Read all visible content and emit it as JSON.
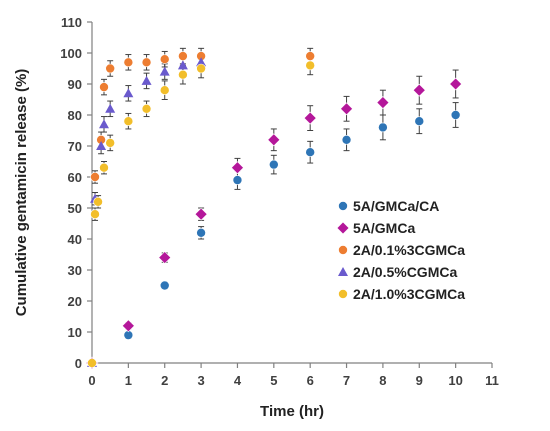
{
  "chart_data": {
    "type": "scatter",
    "xlabel": "Time (hr)",
    "ylabel": "Cumulative gentamicin  release (%)",
    "xlim": [
      0,
      11
    ],
    "ylim": [
      0,
      110
    ],
    "xticks": [
      0,
      1,
      2,
      3,
      4,
      5,
      6,
      7,
      8,
      9,
      10,
      11
    ],
    "yticks": [
      0,
      10,
      20,
      30,
      40,
      50,
      60,
      70,
      80,
      90,
      100,
      110
    ],
    "grid": false,
    "legend_position": "right-middle",
    "series": [
      {
        "name": "5A/GMCa/CA",
        "marker": "circle",
        "color": "#2e75b6",
        "points": [
          {
            "x": 0,
            "y": 0,
            "err": 0
          },
          {
            "x": 1,
            "y": 9,
            "err": 1
          },
          {
            "x": 2,
            "y": 25,
            "err": 1
          },
          {
            "x": 3,
            "y": 42,
            "err": 2
          },
          {
            "x": 4,
            "y": 59,
            "err": 3
          },
          {
            "x": 5,
            "y": 64,
            "err": 3
          },
          {
            "x": 6,
            "y": 68,
            "err": 3.5
          },
          {
            "x": 7,
            "y": 72,
            "err": 3.5
          },
          {
            "x": 8,
            "y": 76,
            "err": 4
          },
          {
            "x": 9,
            "y": 78,
            "err": 4
          },
          {
            "x": 10,
            "y": 80,
            "err": 4
          }
        ]
      },
      {
        "name": "5A/GMCa",
        "marker": "diamond",
        "color": "#b4179a",
        "points": [
          {
            "x": 0,
            "y": 0,
            "err": 0
          },
          {
            "x": 1,
            "y": 12,
            "err": 1
          },
          {
            "x": 2,
            "y": 34,
            "err": 1.5
          },
          {
            "x": 3,
            "y": 48,
            "err": 2
          },
          {
            "x": 4,
            "y": 63,
            "err": 3
          },
          {
            "x": 5,
            "y": 72,
            "err": 3.5
          },
          {
            "x": 6,
            "y": 79,
            "err": 4
          },
          {
            "x": 7,
            "y": 82,
            "err": 4
          },
          {
            "x": 8,
            "y": 84,
            "err": 4
          },
          {
            "x": 9,
            "y": 88,
            "err": 4.5
          },
          {
            "x": 10,
            "y": 90,
            "err": 4.5
          }
        ]
      },
      {
        "name": "2A/0.1%3CGMCa",
        "marker": "circle",
        "color": "#ed7d31",
        "points": [
          {
            "x": 0,
            "y": 0,
            "err": 0
          },
          {
            "x": 0.083,
            "y": 60,
            "err": 2
          },
          {
            "x": 0.25,
            "y": 72,
            "err": 2.5
          },
          {
            "x": 0.33,
            "y": 89,
            "err": 2.5
          },
          {
            "x": 0.5,
            "y": 95,
            "err": 2.5
          },
          {
            "x": 1,
            "y": 97,
            "err": 2.5
          },
          {
            "x": 1.5,
            "y": 97,
            "err": 2.5
          },
          {
            "x": 2,
            "y": 98,
            "err": 2.5
          },
          {
            "x": 2.5,
            "y": 99,
            "err": 2.5
          },
          {
            "x": 3,
            "y": 99,
            "err": 2.5
          },
          {
            "x": 6,
            "y": 99,
            "err": 2.5
          }
        ]
      },
      {
        "name": "2A/0.5%CGMCa",
        "marker": "triangle",
        "color": "#6a5acd",
        "points": [
          {
            "x": 0,
            "y": 0,
            "err": 0
          },
          {
            "x": 0.083,
            "y": 53,
            "err": 2
          },
          {
            "x": 0.25,
            "y": 70,
            "err": 2.5
          },
          {
            "x": 0.33,
            "y": 77,
            "err": 2.5
          },
          {
            "x": 0.5,
            "y": 82,
            "err": 2.5
          },
          {
            "x": 1,
            "y": 87,
            "err": 2.5
          },
          {
            "x": 1.5,
            "y": 91,
            "err": 2.5
          },
          {
            "x": 2,
            "y": 94,
            "err": 2.5
          },
          {
            "x": 2.5,
            "y": 96,
            "err": 2.5
          },
          {
            "x": 3,
            "y": 97,
            "err": 2.5
          }
        ]
      },
      {
        "name": "2A/1.0%3CGMCa",
        "marker": "circle",
        "color": "#f2be2a",
        "points": [
          {
            "x": 0,
            "y": 0,
            "err": 0
          },
          {
            "x": 0.083,
            "y": 48,
            "err": 2
          },
          {
            "x": 0.167,
            "y": 52,
            "err": 2
          },
          {
            "x": 0.33,
            "y": 63,
            "err": 2
          },
          {
            "x": 0.5,
            "y": 71,
            "err": 2.5
          },
          {
            "x": 1,
            "y": 78,
            "err": 2.5
          },
          {
            "x": 1.5,
            "y": 82,
            "err": 2.5
          },
          {
            "x": 2,
            "y": 88,
            "err": 3
          },
          {
            "x": 2.5,
            "y": 93,
            "err": 3
          },
          {
            "x": 3,
            "y": 95,
            "err": 3
          },
          {
            "x": 6,
            "y": 96,
            "err": 3
          }
        ]
      }
    ]
  }
}
